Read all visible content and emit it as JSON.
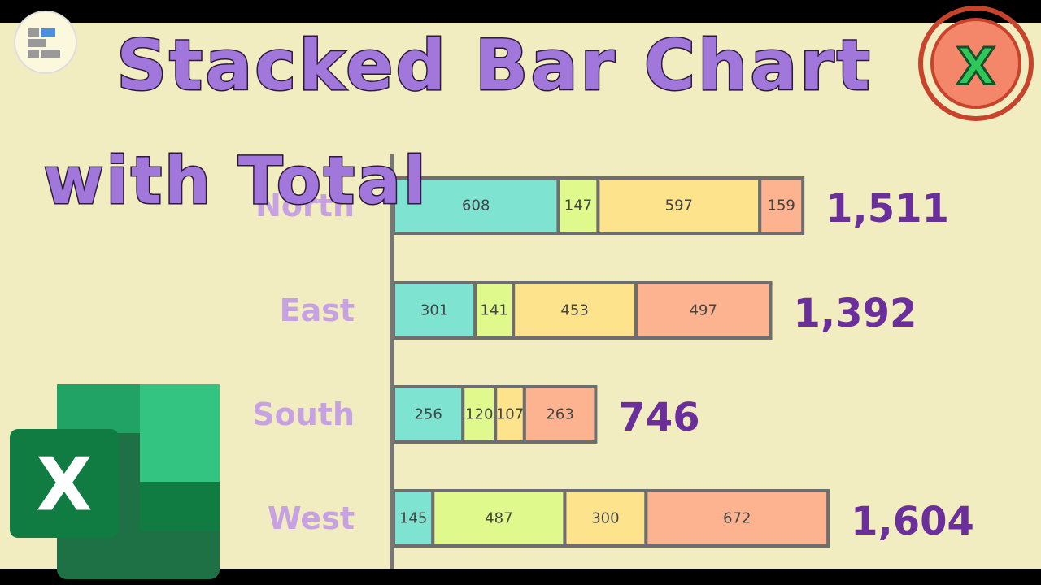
{
  "chart_data": {
    "type": "bar",
    "orientation": "horizontal",
    "stacked": true,
    "title": "Stacked Bar Chart",
    "subtitle": "with Total",
    "categories": [
      "North",
      "East",
      "South",
      "West"
    ],
    "series": [
      {
        "color": "#7fe3d2",
        "values": [
          608,
          301,
          256,
          145
        ]
      },
      {
        "color": "#e0f98c",
        "values": [
          147,
          141,
          120,
          487
        ]
      },
      {
        "color": "#fde38c",
        "values": [
          597,
          453,
          107,
          300
        ]
      },
      {
        "color": "#fdb38f",
        "values": [
          159,
          497,
          263,
          672
        ]
      }
    ],
    "totals": [
      1511,
      1392,
      746,
      1604
    ],
    "total_labels": [
      "1,511",
      "1,392",
      "746",
      "1,604"
    ]
  }
}
